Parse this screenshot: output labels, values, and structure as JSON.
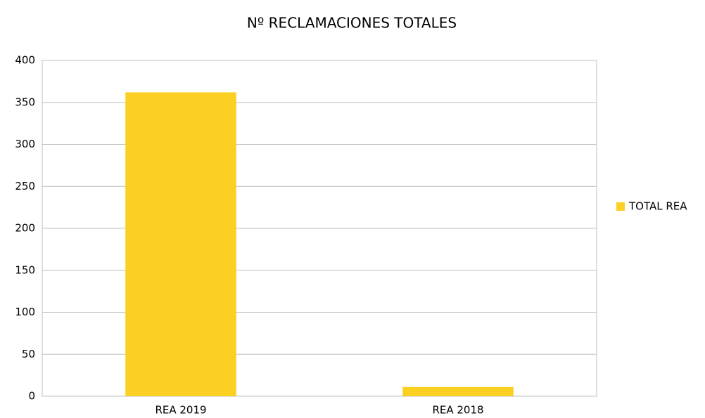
{
  "chart_data": {
    "type": "bar",
    "title": "Nº RECLAMACIONES TOTALES",
    "categories": [
      "REA 2019",
      "REA 2018"
    ],
    "series": [
      {
        "name": "TOTAL REA",
        "color": "#fcd022",
        "values": [
          362,
          11
        ]
      }
    ],
    "ylim": [
      0,
      400
    ],
    "yticks": [
      0,
      50,
      100,
      150,
      200,
      250,
      300,
      350,
      400
    ],
    "grid": true,
    "legend": "right"
  }
}
